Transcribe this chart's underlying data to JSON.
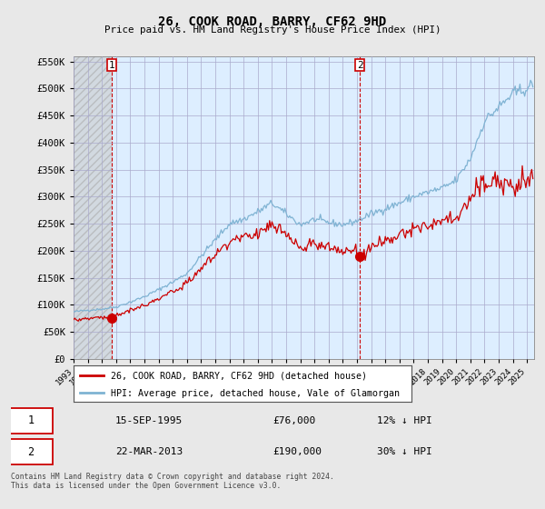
{
  "title": "26, COOK ROAD, BARRY, CF62 9HD",
  "subtitle": "Price paid vs. HM Land Registry's House Price Index (HPI)",
  "legend_line1": "26, COOK ROAD, BARRY, CF62 9HD (detached house)",
  "legend_line2": "HPI: Average price, detached house, Vale of Glamorgan",
  "point1_date": "15-SEP-1995",
  "point1_price": "£76,000",
  "point1_hpi": "12% ↓ HPI",
  "point2_date": "22-MAR-2013",
  "point2_price": "£190,000",
  "point2_hpi": "30% ↓ HPI",
  "footer": "Contains HM Land Registry data © Crown copyright and database right 2024.\nThis data is licensed under the Open Government Licence v3.0.",
  "ylim": [
    0,
    560000
  ],
  "yticks": [
    0,
    50000,
    100000,
    150000,
    200000,
    250000,
    300000,
    350000,
    400000,
    450000,
    500000,
    550000
  ],
  "ytick_labels": [
    "£0",
    "£50K",
    "£100K",
    "£150K",
    "£200K",
    "£250K",
    "£300K",
    "£350K",
    "£400K",
    "£450K",
    "£500K",
    "£550K"
  ],
  "price_paid_color": "#cc0000",
  "hpi_color": "#7fb3d3",
  "background_color": "#e8e8e8",
  "plot_bg_color": "#ddeeff",
  "grid_color": "#aaaacc",
  "point1_x": 1995.71,
  "point1_y": 76000,
  "point2_x": 2013.22,
  "point2_y": 190000,
  "xlim_start": 1993.0,
  "xlim_end": 2025.5
}
